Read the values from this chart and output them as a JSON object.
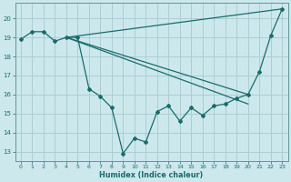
{
  "xlabel": "Humidex (Indice chaleur)",
  "bg_color": "#cce8ec",
  "grid_color": "#aacfd4",
  "line_color": "#1a6b6b",
  "spine_color": "#5a9a9a",
  "xlim": [
    -0.5,
    23.5
  ],
  "ylim": [
    12.5,
    20.8
  ],
  "yticks": [
    13,
    14,
    15,
    16,
    17,
    18,
    19,
    20
  ],
  "xticks": [
    0,
    1,
    2,
    3,
    4,
    5,
    6,
    7,
    8,
    9,
    10,
    11,
    12,
    13,
    14,
    15,
    16,
    17,
    18,
    19,
    20,
    21,
    22,
    23
  ],
  "main_x": [
    0,
    1,
    2,
    3,
    4,
    5,
    6,
    7,
    8,
    9,
    10,
    11,
    12,
    13,
    14,
    15,
    16,
    17,
    18,
    19,
    20,
    21,
    22,
    23
  ],
  "main_y": [
    18.9,
    19.3,
    19.3,
    18.8,
    19.0,
    19.0,
    16.3,
    15.9,
    15.3,
    12.9,
    13.7,
    13.5,
    15.1,
    15.4,
    14.6,
    15.3,
    14.9,
    15.4,
    15.5,
    15.8,
    16.0,
    17.2,
    19.1,
    20.5
  ],
  "line1_x": [
    4,
    23
  ],
  "line1_y": [
    19.0,
    20.5
  ],
  "line2_x": [
    4,
    20
  ],
  "line2_y": [
    19.0,
    16.0
  ],
  "line3_x": [
    4,
    20
  ],
  "line3_y": [
    19.0,
    15.5
  ]
}
